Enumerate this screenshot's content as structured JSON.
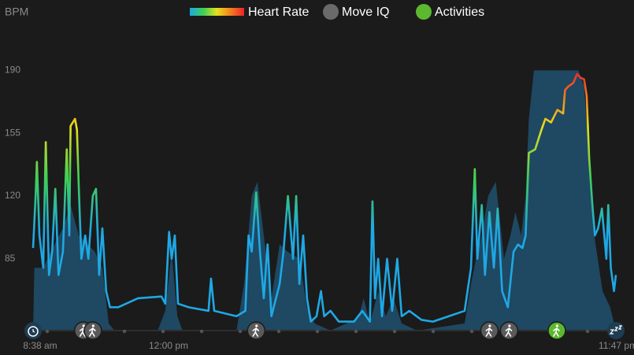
{
  "chart_data": {
    "type": "line",
    "ylabel": "BPM",
    "ylim": [
      45,
      195
    ],
    "yticks": [
      85,
      120,
      155,
      190
    ],
    "xlim": [
      518,
      1435
    ],
    "xticks": [
      {
        "value": 518,
        "label": "8:38 am"
      },
      {
        "value": 720,
        "label": "12:00 pm"
      },
      {
        "value": 1427,
        "label": "11:47 pm"
      }
    ],
    "grid": false,
    "series": [
      {
        "name": "Heart Rate",
        "color_stops": [
          {
            "value": 100,
            "color": "#1ea8e4"
          },
          {
            "value": 130,
            "color": "#3fcf55"
          },
          {
            "value": 158,
            "color": "#e6e01e"
          },
          {
            "value": 175,
            "color": "#f2801e"
          },
          {
            "value": 190,
            "color": "#ec2228"
          }
        ],
        "x": [
          518,
          522,
          524,
          528,
          534,
          538,
          543,
          548,
          553,
          558,
          565,
          571,
          575,
          577,
          584,
          587,
          590,
          594,
          600,
          605,
          612,
          617,
          622,
          627,
          633,
          639,
          652,
          683,
          720,
          726,
          732,
          736,
          741,
          746,
          763,
          794,
          798,
          803,
          838,
          852,
          857,
          862,
          869,
          875,
          881,
          887,
          893,
          906,
          912,
          919,
          927,
          932,
          937,
          943,
          949,
          955,
          964,
          971,
          976,
          986,
          999,
          1023,
          1036,
          1048,
          1052,
          1056,
          1061,
          1067,
          1075,
          1083,
          1091,
          1098,
          1110,
          1129,
          1147,
          1172,
          1197,
          1207,
          1213,
          1217,
          1224,
          1229,
          1236,
          1243,
          1249,
          1256,
          1265,
          1274,
          1281,
          1288,
          1293,
          1298,
          1308,
          1318,
          1324,
          1333,
          1343,
          1352,
          1355,
          1360,
          1368,
          1374,
          1379,
          1385,
          1389,
          1393,
          1398,
          1402,
          1407,
          1413,
          1420,
          1423,
          1427,
          1432,
          1435
        ],
        "values": [
          91,
          120,
          139,
          98,
          80,
          150,
          76,
          89,
          124,
          76,
          89,
          146,
          98,
          159,
          163,
          157,
          124,
          85,
          98,
          85,
          120,
          124,
          76,
          102,
          67,
          58,
          58,
          63,
          64,
          60,
          100,
          85,
          98,
          60,
          58,
          56,
          74,
          56,
          53,
          56,
          98,
          89,
          122,
          89,
          63,
          93,
          53,
          71,
          89,
          120,
          85,
          120,
          71,
          98,
          63,
          50,
          53,
          67,
          53,
          56,
          50,
          50,
          56,
          50,
          117,
          63,
          85,
          53,
          85,
          56,
          85,
          53,
          56,
          51,
          50,
          53,
          56,
          80,
          135,
          85,
          115,
          76,
          111,
          80,
          113,
          67,
          58,
          89,
          93,
          91,
          98,
          144,
          146,
          157,
          163,
          161,
          168,
          166,
          179,
          181,
          183,
          188,
          186,
          185,
          176,
          141,
          115,
          98,
          102,
          113,
          85,
          115,
          80,
          67,
          76
        ]
      },
      {
        "color": "#1f4862",
        "x": [
          518,
          520,
          534,
          546,
          565,
          577,
          590,
          615,
          627,
          637,
          646,
          714,
          726,
          736,
          745,
          753,
          838,
          850,
          862,
          871,
          881,
          893,
          906,
          918,
          937,
          949,
          961,
          986,
          1030,
          1038,
          1048,
          1061,
          1073,
          1085,
          1098,
          1122,
          1197,
          1207,
          1215,
          1224,
          1234,
          1246,
          1259,
          1269,
          1277,
          1286,
          1293,
          1298,
          1306,
          1376,
          1385,
          1393,
          1401,
          1414,
          1426,
          1435
        ],
        "values": [
          45,
          80,
          80,
          89,
          102,
          115,
          98,
          89,
          80,
          49,
          45,
          45,
          56,
          89,
          53,
          45,
          45,
          71,
          120,
          128,
          98,
          63,
          93,
          89,
          85,
          58,
          49,
          45,
          52,
          63,
          49,
          67,
          53,
          63,
          49,
          45,
          49,
          71,
          85,
          98,
          120,
          128,
          85,
          98,
          111,
          98,
          120,
          163,
          190,
          190,
          181,
          141,
          98,
          67,
          58,
          45
        ]
      }
    ],
    "markers": [
      {
        "name": "Move IQ",
        "color": "#5a5a5a",
        "x": [
          597,
          612,
          869,
          1236,
          1267
        ]
      },
      {
        "name": "Activities",
        "color": "#5cb82e",
        "x": [
          1342
        ]
      }
    ]
  }
}
